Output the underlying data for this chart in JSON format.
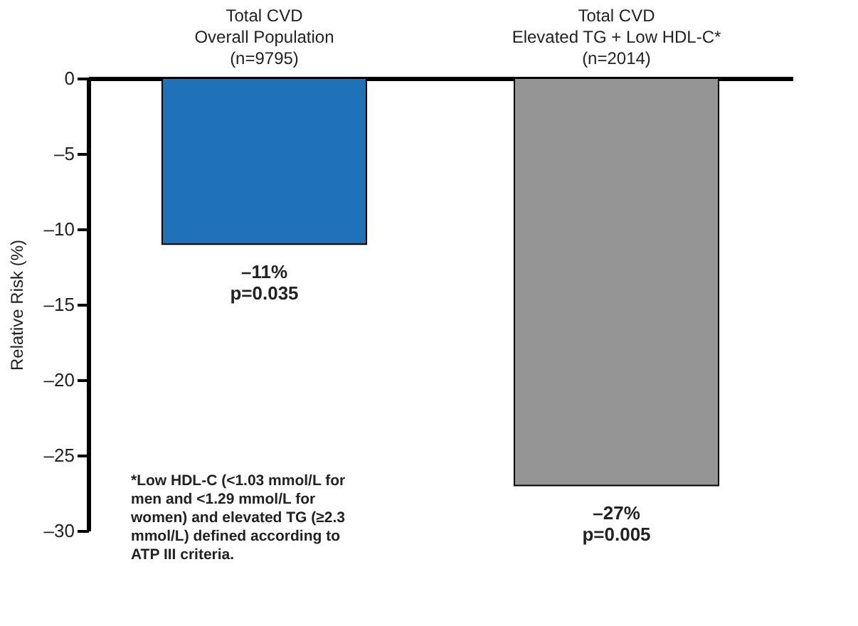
{
  "chart_data": {
    "type": "bar",
    "categories": [
      "Total CVD\nOverall Population\n(n=9795)",
      "Total CVD\nElevated TG + Low HDL-C*\n(n=2014)"
    ],
    "values": [
      -11,
      -27
    ],
    "colors": [
      "#1f72b8",
      "#959595"
    ],
    "value_labels": [
      "–11%\np=0.035",
      "–27%\np=0.005"
    ],
    "ylabel": "Relative Risk (%)",
    "ylim": [
      -30,
      0
    ],
    "yticks": [
      0,
      {
        "value": -5,
        "label": "–5"
      },
      {
        "value": -10,
        "label": "–10"
      },
      {
        "value": -15,
        "label": "–15"
      },
      {
        "value": -20,
        "label": "–20"
      },
      {
        "value": -25,
        "label": "–25"
      },
      {
        "value": -30,
        "label": "–30"
      }
    ],
    "annotations": [
      "*Low HDL-C (<1.03 mmol/L for\nmen and <1.29 mmol/L for\nwomen) and elevated TG (≥2.3\nmmol/L) defined according to\nATP III criteria."
    ],
    "grid": false
  }
}
